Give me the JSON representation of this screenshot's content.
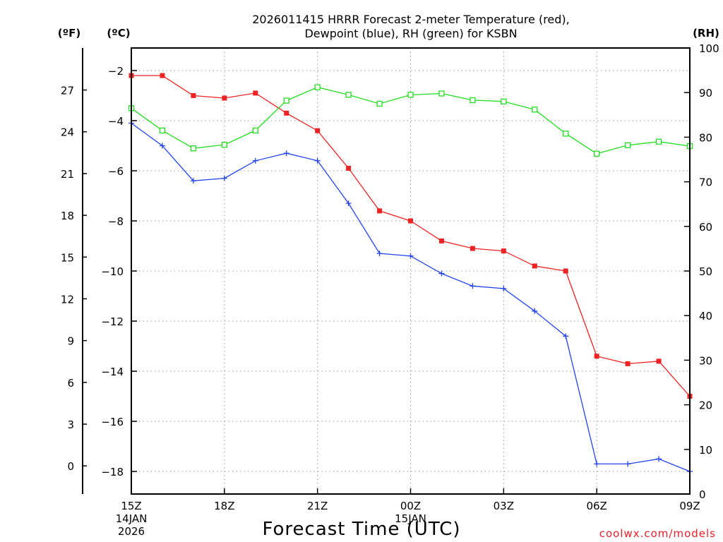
{
  "chart_data": {
    "type": "line",
    "title_line1": "2026011415 HRRR Forecast 2-meter Temperature (red),",
    "title_line2": "Dewpoint (blue), RH (green) for KSBN",
    "xlabel": "Forecast Time (UTC)",
    "credit": "coolwx.com/models",
    "units": {
      "fahrenheit": "(ºF)",
      "celsius": "(ºC)",
      "rh": "(RH)"
    },
    "x_range": [
      0,
      18
    ],
    "x_ticks": [
      {
        "x": 0,
        "label": "15Z",
        "sub1": "14JAN",
        "sub2": "2026"
      },
      {
        "x": 3,
        "label": "18Z",
        "sub1": "",
        "sub2": ""
      },
      {
        "x": 6,
        "label": "21Z",
        "sub1": "",
        "sub2": ""
      },
      {
        "x": 9,
        "label": "00Z",
        "sub1": "15JAN",
        "sub2": ""
      },
      {
        "x": 12,
        "label": "03Z",
        "sub1": "",
        "sub2": ""
      },
      {
        "x": 15,
        "label": "06Z",
        "sub1": "",
        "sub2": ""
      },
      {
        "x": 18,
        "label": "09Z",
        "sub1": "",
        "sub2": ""
      }
    ],
    "celsius_axis": {
      "range": [
        -18.9,
        -1.1
      ],
      "ticks": [
        -2,
        -4,
        -6,
        -8,
        -10,
        -12,
        -14,
        -16,
        -18
      ],
      "labels": [
        "−2",
        "−4",
        "−6",
        "−8",
        "−10",
        "−12",
        "−14",
        "−16",
        "−18"
      ]
    },
    "fahrenheit_axis": {
      "ticks": [
        27,
        24,
        21,
        18,
        15,
        12,
        9,
        6,
        3,
        0
      ],
      "labels": [
        "27",
        "24",
        "21",
        "18",
        "15",
        "12",
        "9",
        "6",
        "3",
        "0"
      ]
    },
    "rh_axis": {
      "range": [
        0,
        100
      ],
      "ticks": [
        0,
        10,
        20,
        30,
        40,
        50,
        60,
        70,
        80,
        90,
        100
      ],
      "labels": [
        "0",
        "10",
        "20",
        "30",
        "40",
        "50",
        "60",
        "70",
        "80",
        "90",
        "100"
      ]
    },
    "grid": true,
    "series": [
      {
        "name": "Temperature",
        "unit": "C",
        "color": "#ee2222",
        "marker": "filled-square",
        "values": [
          -2.2,
          -2.2,
          -3.0,
          -3.1,
          -2.9,
          -3.7,
          -4.4,
          -5.9,
          -7.6,
          -8.0,
          -8.8,
          -9.1,
          -9.2,
          -9.8,
          -10.0,
          -13.4,
          -13.7,
          -13.6,
          -15.0
        ]
      },
      {
        "name": "Dewpoint",
        "unit": "C",
        "color": "#2244ee",
        "marker": "plus",
        "values": [
          -4.1,
          -5.0,
          -6.4,
          -6.3,
          -5.6,
          -5.3,
          -5.6,
          -7.3,
          -9.3,
          -9.4,
          -10.1,
          -10.6,
          -10.7,
          -11.6,
          -12.6,
          -17.7,
          -17.7,
          -17.5,
          -18.0
        ]
      },
      {
        "name": "RH",
        "unit": "%",
        "color": "#22dd22",
        "marker": "open-square",
        "values": [
          86.5,
          81.5,
          77.5,
          78.3,
          81.5,
          88.2,
          91.2,
          89.5,
          87.5,
          89.5,
          89.8,
          88.3,
          88.0,
          86.2,
          80.8,
          76.3,
          78.2,
          79.0,
          78.0
        ]
      }
    ]
  }
}
